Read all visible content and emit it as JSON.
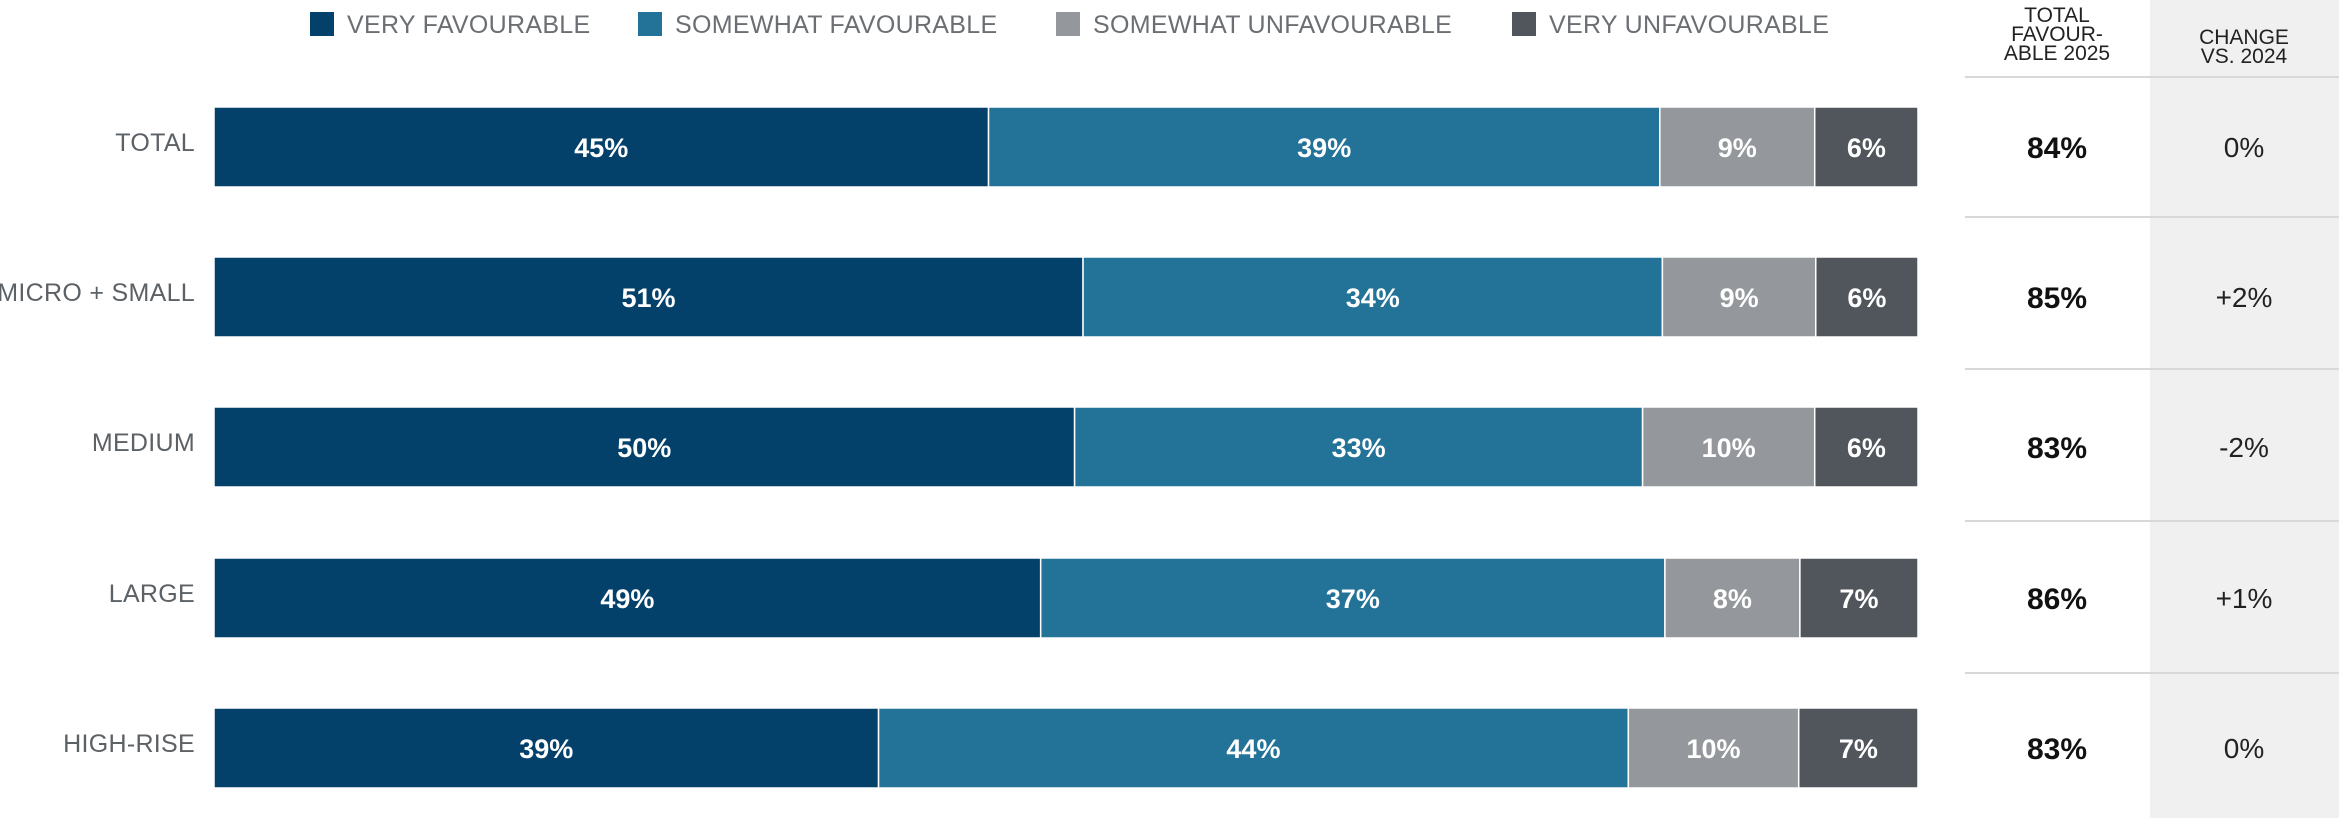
{
  "chart_data": {
    "type": "bar",
    "orientation": "horizontal",
    "stacked": true,
    "unit": "%",
    "categories": [
      "TOTAL",
      "MICRO + SMALL",
      "MEDIUM",
      "LARGE",
      "HIGH-RISE"
    ],
    "series": [
      {
        "name": "VERY FAVOURABLE",
        "color": "#03416b",
        "values": [
          45,
          51,
          50,
          49,
          39
        ],
        "labels": [
          "45%",
          "51%",
          "50%",
          "49%",
          "39%"
        ]
      },
      {
        "name": "SOMEWHAT FAVOURABLE",
        "color": "#237298",
        "values": [
          39,
          34,
          33,
          37,
          44
        ],
        "labels": [
          "39%",
          "34%",
          "33%",
          "37%",
          "44%"
        ]
      },
      {
        "name": "SOMEWHAT UNFAVOURABLE",
        "color": "#94989c",
        "values": [
          9,
          9,
          10,
          8,
          10
        ],
        "labels": [
          "9%",
          "9%",
          "10%",
          "8%",
          "10%"
        ]
      },
      {
        "name": "VERY UNFAVOURABLE",
        "color": "#50565c",
        "values": [
          6,
          6,
          6,
          7,
          7
        ],
        "labels": [
          "6%",
          "6%",
          "6%",
          "7%",
          "7%"
        ]
      }
    ],
    "legend_position": "top",
    "grid": false,
    "side_table": {
      "columns": [
        {
          "header_lines": [
            "TOTAL",
            "FAVOUR-",
            "ABLE 2025"
          ],
          "values": [
            "84%",
            "85%",
            "83%",
            "86%",
            "83%"
          ]
        },
        {
          "header_lines": [
            "CHANGE",
            "VS. 2024"
          ],
          "values": [
            "0%",
            "+2%",
            "-2%",
            "+1%",
            "0%"
          ]
        }
      ]
    }
  }
}
